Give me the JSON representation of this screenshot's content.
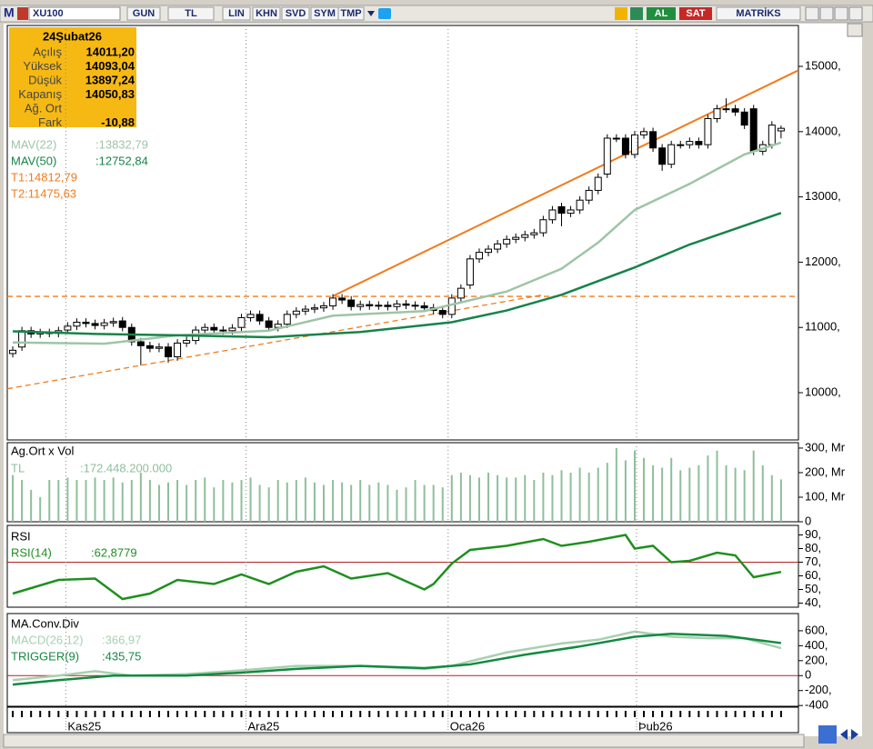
{
  "toolbar": {
    "logo": "M",
    "symbol": "XU100",
    "buttons": [
      "GUN",
      "TL",
      "LIN",
      "KHN",
      "SVD",
      "SYM",
      "TMP"
    ],
    "buy": "AL",
    "sell": "SAT",
    "brand": "MATRİKS"
  },
  "info_box": {
    "date": "24Şubat26",
    "rows": [
      {
        "label": "Açılış",
        "value": "14011,20"
      },
      {
        "label": "Yüksek",
        "value": "14093,04"
      },
      {
        "label": "Düşük",
        "value": "13897,24"
      },
      {
        "label": "Kapanış",
        "value": "14050,83"
      },
      {
        "label": "Ağ. Ort"
      },
      {
        "label": "Fark",
        "value": "-10,88"
      }
    ]
  },
  "chart_data": [
    {
      "type": "candlestick",
      "up_color": "#ffffff",
      "down_color": "#000000",
      "xlim": [
        -0.6,
        85.9
      ],
      "ylim": [
        9276,
        15627
      ],
      "yticks": [
        {
          "value": 10000,
          "label": "10000,"
        },
        {
          "value": 11000,
          "label": "11000,"
        },
        {
          "value": 12000,
          "label": "12000,"
        },
        {
          "value": 13000,
          "label": "13000,"
        },
        {
          "value": 14000,
          "label": "14000,"
        },
        {
          "value": 15000,
          "label": "15000,"
        }
      ],
      "open": [
        10600,
        10700,
        10950,
        10900,
        10920,
        10910,
        10960,
        11020,
        11080,
        11060,
        11030,
        11070,
        11100,
        11000,
        10780,
        10720,
        10680,
        10700,
        10550,
        10760,
        10800,
        10960,
        11000,
        10960,
        10950,
        11000,
        11150,
        11200,
        11100,
        11000,
        11050,
        11200,
        11250,
        11280,
        11300,
        11330,
        11450,
        11420,
        11320,
        11350,
        11330,
        11340,
        11320,
        11360,
        11340,
        11330,
        11300,
        11260,
        11200,
        11450,
        11650,
        12050,
        12150,
        12200,
        12280,
        12350,
        12380,
        12420,
        12450,
        12650,
        12850,
        12750,
        12800,
        12950,
        13100,
        13350,
        13900,
        13900,
        13650,
        13950,
        14000,
        13750,
        13500,
        13800,
        13800,
        13850,
        13800,
        14200,
        14350,
        14350,
        14300,
        14350,
        13700,
        13800,
        14011.2
      ],
      "high": [
        10710,
        11010,
        11010,
        10980,
        10980,
        11010,
        11080,
        11140,
        11140,
        11120,
        11130,
        11150,
        11160,
        11060,
        10840,
        10780,
        10760,
        10760,
        10820,
        10860,
        11020,
        11060,
        11060,
        11020,
        11050,
        11210,
        11260,
        11260,
        11160,
        11110,
        11260,
        11310,
        11340,
        11360,
        11390,
        11510,
        11510,
        11480,
        11410,
        11410,
        11400,
        11400,
        11420,
        11420,
        11400,
        11390,
        11360,
        11320,
        11510,
        11660,
        12110,
        12210,
        12260,
        12340,
        12410,
        12440,
        12480,
        12510,
        12710,
        12860,
        12910,
        12860,
        13010,
        13160,
        13360,
        13960,
        13960,
        13960,
        14010,
        14060,
        14060,
        13810,
        13860,
        13860,
        13910,
        13910,
        14260,
        14410,
        14510,
        14410,
        14360,
        14410,
        13860,
        14160,
        14093.04
      ],
      "low": [
        10540,
        10640,
        10840,
        10840,
        10850,
        10850,
        10900,
        10960,
        11000,
        10970,
        10970,
        11010,
        10940,
        10720,
        10420,
        10620,
        10620,
        10460,
        10490,
        10700,
        10740,
        10900,
        10900,
        10890,
        10890,
        10940,
        11090,
        11040,
        10940,
        10940,
        10990,
        11140,
        11190,
        11220,
        11240,
        11270,
        11360,
        11260,
        11260,
        11270,
        11270,
        11260,
        11260,
        11280,
        11270,
        11240,
        11200,
        11140,
        11140,
        11390,
        11590,
        11990,
        12090,
        12140,
        12220,
        12290,
        12320,
        12360,
        12390,
        12590,
        12550,
        12690,
        12740,
        12890,
        13040,
        13290,
        13840,
        13590,
        13590,
        13890,
        13690,
        13400,
        13440,
        13740,
        13740,
        13740,
        13740,
        14140,
        14290,
        14240,
        14040,
        13640,
        13640,
        13740,
        13897.24
      ],
      "close": [
        10650,
        10950,
        10900,
        10920,
        10910,
        10950,
        11020,
        11080,
        11060,
        11030,
        11070,
        11090,
        11000,
        10780,
        10720,
        10680,
        10700,
        10550,
        10760,
        10800,
        10960,
        11000,
        10960,
        10950,
        10990,
        11150,
        11200,
        11100,
        11000,
        11050,
        11200,
        11250,
        11280,
        11300,
        11330,
        11450,
        11420,
        11320,
        11350,
        11330,
        11340,
        11320,
        11360,
        11340,
        11330,
        11300,
        11260,
        11200,
        11450,
        11600,
        12050,
        12150,
        12200,
        12280,
        12350,
        12380,
        12420,
        12450,
        12650,
        12800,
        12750,
        12800,
        12950,
        13100,
        13300,
        13900,
        13900,
        13650,
        13950,
        14000,
        13750,
        13500,
        13800,
        13800,
        13850,
        13800,
        14200,
        14350,
        14350,
        14300,
        14100,
        13700,
        13800,
        14100,
        14050.83
      ],
      "series": [
        {
          "name": "MAV(22)",
          "color": "#9ec5a6",
          "value_label": ":13832,79",
          "x": [
            0,
            10,
            18,
            28,
            35,
            45,
            48,
            54,
            60,
            64,
            68,
            74,
            80,
            84
          ],
          "values": [
            10770,
            10750,
            10880,
            10950,
            11180,
            11250,
            11350,
            11550,
            11900,
            12300,
            12800,
            13200,
            13650,
            13832.79
          ]
        },
        {
          "name": "MAV(50)",
          "color": "#17834a",
          "value_label": ":12752,84",
          "x": [
            0,
            9,
            18,
            28,
            38,
            48,
            54,
            60,
            68,
            74,
            84
          ],
          "values": [
            10940,
            10900,
            10880,
            10850,
            10930,
            11080,
            11260,
            11500,
            11920,
            12270,
            12752.84
          ]
        }
      ],
      "lines": [
        {
          "label": "T1:14812,79",
          "color": "#f07c1e",
          "dash": false,
          "x": [
            35,
            85.9
          ],
          "values": [
            11480,
            14940
          ]
        },
        {
          "label": "T2:11475,63",
          "color": "#f07c1e",
          "dash": true,
          "x": [
            -0.6,
            85.9
          ],
          "values": [
            11475.63,
            11475.63
          ]
        },
        {
          "color": "#f07c1e",
          "dash": true,
          "x": [
            -0.6,
            58
          ],
          "values": [
            10060,
            11500
          ]
        }
      ]
    },
    {
      "type": "bar",
      "title": "Ag.Ort x Vol",
      "ylim": [
        0,
        322
      ],
      "yticks": [
        {
          "value": 0,
          "label": "0"
        },
        {
          "value": 100,
          "label": "100, Mr"
        },
        {
          "value": 200,
          "label": "200, Mr"
        },
        {
          "value": 300,
          "label": "300, Mr"
        }
      ],
      "series": [
        {
          "name": "TL",
          "color": "#8fbf9a",
          "value_label": ":172.448.200.000",
          "values": [
            190,
            170,
            130,
            100,
            170,
            170,
            180,
            170,
            170,
            180,
            170,
            180,
            160,
            170,
            200,
            170,
            150,
            160,
            170,
            150,
            170,
            180,
            140,
            170,
            160,
            170,
            180,
            150,
            140,
            170,
            160,
            170,
            180,
            160,
            150,
            170,
            160,
            150,
            170,
            150,
            160,
            150,
            130,
            140,
            170,
            150,
            150,
            140,
            190,
            200,
            190,
            180,
            200,
            190,
            180,
            180,
            190,
            170,
            200,
            190,
            210,
            200,
            220,
            200,
            220,
            240,
            300,
            250,
            290,
            260,
            230,
            220,
            260,
            210,
            220,
            230,
            270,
            290,
            230,
            220,
            210,
            290,
            230,
            190,
            172.4482
          ]
        }
      ]
    },
    {
      "type": "line",
      "title": "RSI",
      "ylim": [
        37,
        97
      ],
      "ref_line": 70,
      "ref_color": "#b22222",
      "yticks": [
        {
          "value": 40,
          "label": "40,"
        },
        {
          "value": 50,
          "label": "50,"
        },
        {
          "value": 60,
          "label": "60,"
        },
        {
          "value": 70,
          "label": "70,"
        },
        {
          "value": 80,
          "label": "80,"
        },
        {
          "value": 90,
          "label": "90,"
        }
      ],
      "series": [
        {
          "name": "RSI(14)",
          "color": "#1f8f1f",
          "value_label": ":62,8779",
          "x": [
            0,
            5,
            9,
            12,
            15,
            18,
            22,
            25,
            28,
            31,
            34,
            37,
            41,
            45,
            46,
            48,
            50,
            54,
            58,
            60,
            63,
            67,
            68,
            70,
            72,
            74,
            77,
            79,
            81,
            84
          ],
          "values": [
            47,
            57,
            58,
            43,
            47,
            57,
            54,
            61,
            54,
            63,
            67,
            58,
            62,
            50,
            54,
            69,
            79,
            82,
            87,
            82,
            85,
            90,
            80,
            82,
            70,
            71,
            77,
            75,
            59,
            62.8779
          ]
        }
      ]
    },
    {
      "type": "line",
      "title": "MA.Conv.Div",
      "ylim": [
        -410,
        830
      ],
      "ref_line": 0,
      "ref_color": "#b22222",
      "grid": true,
      "yticks": [
        {
          "value": -400,
          "label": "-400"
        },
        {
          "value": -200,
          "label": "-200,"
        },
        0,
        {
          "value": 200,
          "label": "200,"
        },
        {
          "value": 400,
          "label": "400,"
        },
        {
          "value": 600,
          "label": "600,"
        }
      ],
      "xticks": [
        {
          "value": 5.8,
          "label": "Kas25"
        },
        {
          "value": 25.5,
          "label": "Ara25"
        },
        {
          "value": 47.6,
          "label": "Oca26"
        },
        {
          "value": 68.2,
          "label": "Þub26"
        }
      ],
      "series": [
        {
          "name": "MACD(26,12)",
          "color": "#a8d0b0",
          "value_label": ":366,97",
          "x": [
            0,
            5,
            9,
            13,
            19,
            25,
            31,
            38,
            45,
            48,
            54,
            60,
            64,
            68,
            72,
            76,
            80,
            84
          ],
          "values": [
            -60,
            0,
            60,
            0,
            20,
            70,
            130,
            130,
            90,
            130,
            310,
            430,
            480,
            590,
            520,
            500,
            500,
            366.97
          ]
        },
        {
          "name": "TRIGGER(9)",
          "color": "#138a40",
          "value_label": ":435,75",
          "x": [
            0,
            5,
            11,
            19,
            25,
            31,
            38,
            45,
            50,
            56,
            62,
            68,
            72,
            78,
            84
          ],
          "values": [
            -120,
            -60,
            0,
            0,
            40,
            90,
            130,
            100,
            150,
            280,
            390,
            520,
            560,
            530,
            435.75
          ]
        }
      ]
    }
  ]
}
